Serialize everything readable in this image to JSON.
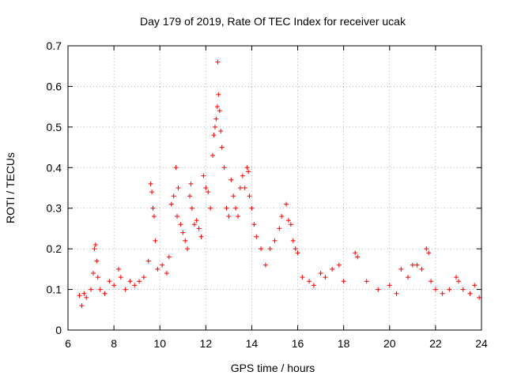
{
  "chart_data": {
    "type": "scatter",
    "title": "Day 179 of 2019, Rate Of TEC Index for receiver ucak",
    "xlabel": "GPS time / hours",
    "ylabel": "ROTI / TECUs",
    "xlim": [
      6,
      24
    ],
    "ylim": [
      0,
      0.7
    ],
    "xticks": [
      6,
      8,
      10,
      12,
      14,
      16,
      18,
      20,
      22,
      24
    ],
    "yticks": [
      0,
      0.1,
      0.2,
      0.3,
      0.4,
      0.5,
      0.6,
      0.7
    ],
    "xtick_labels": [
      "6",
      "8",
      "10",
      "12",
      "14",
      "16",
      "18",
      "20",
      "22",
      "24"
    ],
    "ytick_labels": [
      "0",
      "0.1",
      "0.2",
      "0.3",
      "0.4",
      "0.5",
      "0.6",
      "0.7"
    ],
    "grid": true,
    "marker": "+",
    "color": "#ff0000",
    "series": [
      {
        "name": "ROTI",
        "points": [
          [
            6.5,
            0.085
          ],
          [
            6.6,
            0.06
          ],
          [
            6.7,
            0.09
          ],
          [
            6.8,
            0.08
          ],
          [
            7.0,
            0.1
          ],
          [
            7.1,
            0.14
          ],
          [
            7.15,
            0.2
          ],
          [
            7.2,
            0.21
          ],
          [
            7.25,
            0.17
          ],
          [
            7.3,
            0.13
          ],
          [
            7.4,
            0.1
          ],
          [
            7.6,
            0.09
          ],
          [
            7.8,
            0.12
          ],
          [
            8.0,
            0.11
          ],
          [
            8.2,
            0.15
          ],
          [
            8.3,
            0.13
          ],
          [
            8.5,
            0.1
          ],
          [
            8.7,
            0.12
          ],
          [
            8.9,
            0.11
          ],
          [
            9.1,
            0.12
          ],
          [
            9.3,
            0.13
          ],
          [
            9.5,
            0.17
          ],
          [
            9.6,
            0.36
          ],
          [
            9.65,
            0.34
          ],
          [
            9.7,
            0.3
          ],
          [
            9.75,
            0.28
          ],
          [
            9.8,
            0.22
          ],
          [
            9.9,
            0.15
          ],
          [
            10.1,
            0.16
          ],
          [
            10.3,
            0.14
          ],
          [
            10.4,
            0.18
          ],
          [
            10.5,
            0.31
          ],
          [
            10.6,
            0.33
          ],
          [
            10.7,
            0.4
          ],
          [
            10.75,
            0.28
          ],
          [
            10.8,
            0.35
          ],
          [
            10.9,
            0.26
          ],
          [
            11.0,
            0.24
          ],
          [
            11.1,
            0.22
          ],
          [
            11.2,
            0.2
          ],
          [
            11.3,
            0.33
          ],
          [
            11.35,
            0.36
          ],
          [
            11.4,
            0.3
          ],
          [
            11.5,
            0.26
          ],
          [
            11.6,
            0.27
          ],
          [
            11.7,
            0.25
          ],
          [
            11.8,
            0.23
          ],
          [
            11.9,
            0.38
          ],
          [
            12.0,
            0.35
          ],
          [
            12.1,
            0.34
          ],
          [
            12.2,
            0.3
          ],
          [
            12.3,
            0.43
          ],
          [
            12.35,
            0.48
          ],
          [
            12.4,
            0.5
          ],
          [
            12.45,
            0.52
          ],
          [
            12.5,
            0.55
          ],
          [
            12.52,
            0.66
          ],
          [
            12.55,
            0.58
          ],
          [
            12.6,
            0.54
          ],
          [
            12.65,
            0.49
          ],
          [
            12.7,
            0.45
          ],
          [
            12.8,
            0.4
          ],
          [
            12.9,
            0.3
          ],
          [
            13.0,
            0.28
          ],
          [
            13.1,
            0.37
          ],
          [
            13.2,
            0.33
          ],
          [
            13.3,
            0.3
          ],
          [
            13.4,
            0.28
          ],
          [
            13.5,
            0.35
          ],
          [
            13.6,
            0.38
          ],
          [
            13.7,
            0.35
          ],
          [
            13.8,
            0.4
          ],
          [
            13.85,
            0.39
          ],
          [
            13.9,
            0.33
          ],
          [
            14.0,
            0.3
          ],
          [
            14.1,
            0.26
          ],
          [
            14.2,
            0.23
          ],
          [
            14.4,
            0.2
          ],
          [
            14.6,
            0.16
          ],
          [
            14.8,
            0.2
          ],
          [
            15.0,
            0.22
          ],
          [
            15.2,
            0.25
          ],
          [
            15.3,
            0.28
          ],
          [
            15.5,
            0.31
          ],
          [
            15.6,
            0.27
          ],
          [
            15.7,
            0.26
          ],
          [
            15.8,
            0.22
          ],
          [
            15.9,
            0.2
          ],
          [
            16.0,
            0.19
          ],
          [
            16.2,
            0.13
          ],
          [
            16.5,
            0.12
          ],
          [
            16.7,
            0.11
          ],
          [
            17.0,
            0.14
          ],
          [
            17.2,
            0.13
          ],
          [
            17.5,
            0.15
          ],
          [
            17.8,
            0.16
          ],
          [
            18.0,
            0.12
          ],
          [
            18.5,
            0.19
          ],
          [
            18.6,
            0.18
          ],
          [
            19.0,
            0.12
          ],
          [
            19.5,
            0.1
          ],
          [
            20.0,
            0.11
          ],
          [
            20.3,
            0.09
          ],
          [
            20.5,
            0.15
          ],
          [
            20.8,
            0.13
          ],
          [
            21.0,
            0.16
          ],
          [
            21.2,
            0.16
          ],
          [
            21.4,
            0.15
          ],
          [
            21.6,
            0.2
          ],
          [
            21.7,
            0.19
          ],
          [
            21.8,
            0.12
          ],
          [
            22.0,
            0.1
          ],
          [
            22.3,
            0.09
          ],
          [
            22.6,
            0.1
          ],
          [
            22.9,
            0.13
          ],
          [
            23.0,
            0.12
          ],
          [
            23.2,
            0.1
          ],
          [
            23.5,
            0.09
          ],
          [
            23.7,
            0.11
          ],
          [
            23.9,
            0.08
          ]
        ]
      }
    ]
  }
}
